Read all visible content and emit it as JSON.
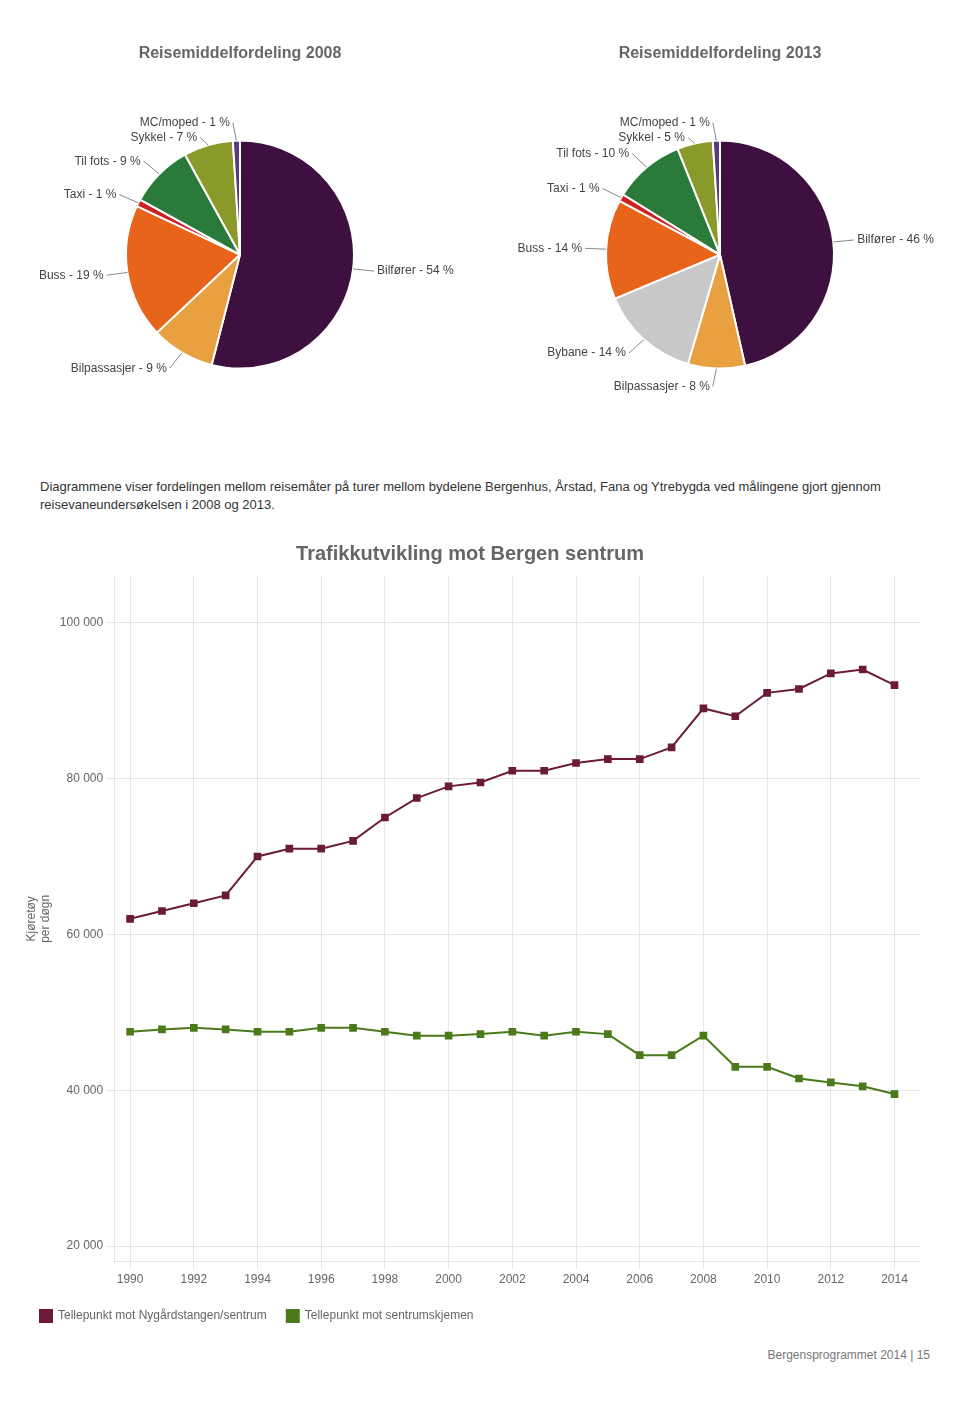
{
  "chart_data": [
    {
      "type": "pie",
      "title": "Reisemiddelfordeling 2008",
      "categories": [
        "Bilfører - 54 %",
        "Bilpassasjer - 9 %",
        "Buss - 19 %",
        "Taxi - 1 %",
        "Til fots - 9 %",
        "Sykkel - 7 %",
        "MC/moped - 1 %"
      ],
      "values": [
        54,
        9,
        19,
        1,
        9,
        7,
        1
      ],
      "colors": [
        "#3d1040",
        "#e8a040",
        "#e8641a",
        "#cc2222",
        "#2a7a3a",
        "#8a9a2a",
        "#5a3a7a"
      ]
    },
    {
      "type": "pie",
      "title": "Reisemiddelfordeling 2013",
      "categories": [
        "Bilfører - 46 %",
        "Bilpassasjer - 8 %",
        "Bybane - 14 %",
        "Buss - 14 %",
        "Taxi - 1 %",
        "Til fots - 10 %",
        "Sykkel - 5 %",
        "MC/moped - 1 %"
      ],
      "values": [
        46,
        8,
        14,
        14,
        1,
        10,
        5,
        1
      ],
      "colors": [
        "#3d1040",
        "#e8a040",
        "#c8c8c8",
        "#e8641a",
        "#cc2222",
        "#2a7a3a",
        "#8a9a2a",
        "#5a3a7a"
      ],
      "annotations": [
        "Diagrammene viser fordelingen mellom reisemåter på turer mellom bydelene Bergenhus, Årstad, Fana og Ytrebygda ved målingene gjort gjennom reisevaneundersøkelsen i 2008 og 2013."
      ]
    },
    {
      "type": "line",
      "title": "Trafikkutvikling mot Bergen sentrum",
      "ylabel": "Kjøretøy\nper døgn",
      "x": [
        1990,
        1991,
        1992,
        1993,
        1994,
        1995,
        1996,
        1997,
        1998,
        1999,
        2000,
        2001,
        2002,
        2003,
        2004,
        2005,
        2006,
        2007,
        2008,
        2009,
        2010,
        2011,
        2012,
        2013,
        2014
      ],
      "xlim": [
        1989.5,
        2014.8
      ],
      "xticks": [
        1990,
        1992,
        1994,
        1996,
        1998,
        2000,
        2002,
        2004,
        2006,
        2008,
        2010,
        2012,
        2014
      ],
      "ylim": [
        18000,
        106000
      ],
      "yticks": [
        {
          "value": 20000,
          "label": "20 000"
        },
        {
          "value": 40000,
          "label": "40 000"
        },
        {
          "value": 60000,
          "label": "60 000"
        },
        {
          "value": 80000,
          "label": "80 000"
        },
        {
          "value": 100000,
          "label": "100 000"
        }
      ],
      "grid": true,
      "legend": "lower left",
      "series": [
        {
          "name": "Tellepunkt mot Nygårdstangen/sentrum",
          "color": "#6b1a3a",
          "marker": "square",
          "values": [
            62000,
            63000,
            64000,
            65000,
            70000,
            71000,
            71000,
            72000,
            75000,
            77500,
            79000,
            79500,
            81000,
            81000,
            82000,
            82500,
            82500,
            84000,
            89000,
            88000,
            91000,
            91500,
            93500,
            94000,
            92000
          ]
        },
        {
          "name": "Tellepunkt mot sentrumskjemen",
          "color": "#4a7a1a",
          "marker": "square",
          "values": [
            47500,
            47800,
            48000,
            47800,
            47500,
            47500,
            48000,
            48000,
            47500,
            47000,
            47000,
            47200,
            47500,
            47000,
            47500,
            47200,
            44500,
            44500,
            47000,
            43000,
            43000,
            41500,
            41000,
            40500,
            39500
          ]
        }
      ],
      "annotations": [
        "Bergensprogrammet 2014 | 15"
      ]
    }
  ]
}
